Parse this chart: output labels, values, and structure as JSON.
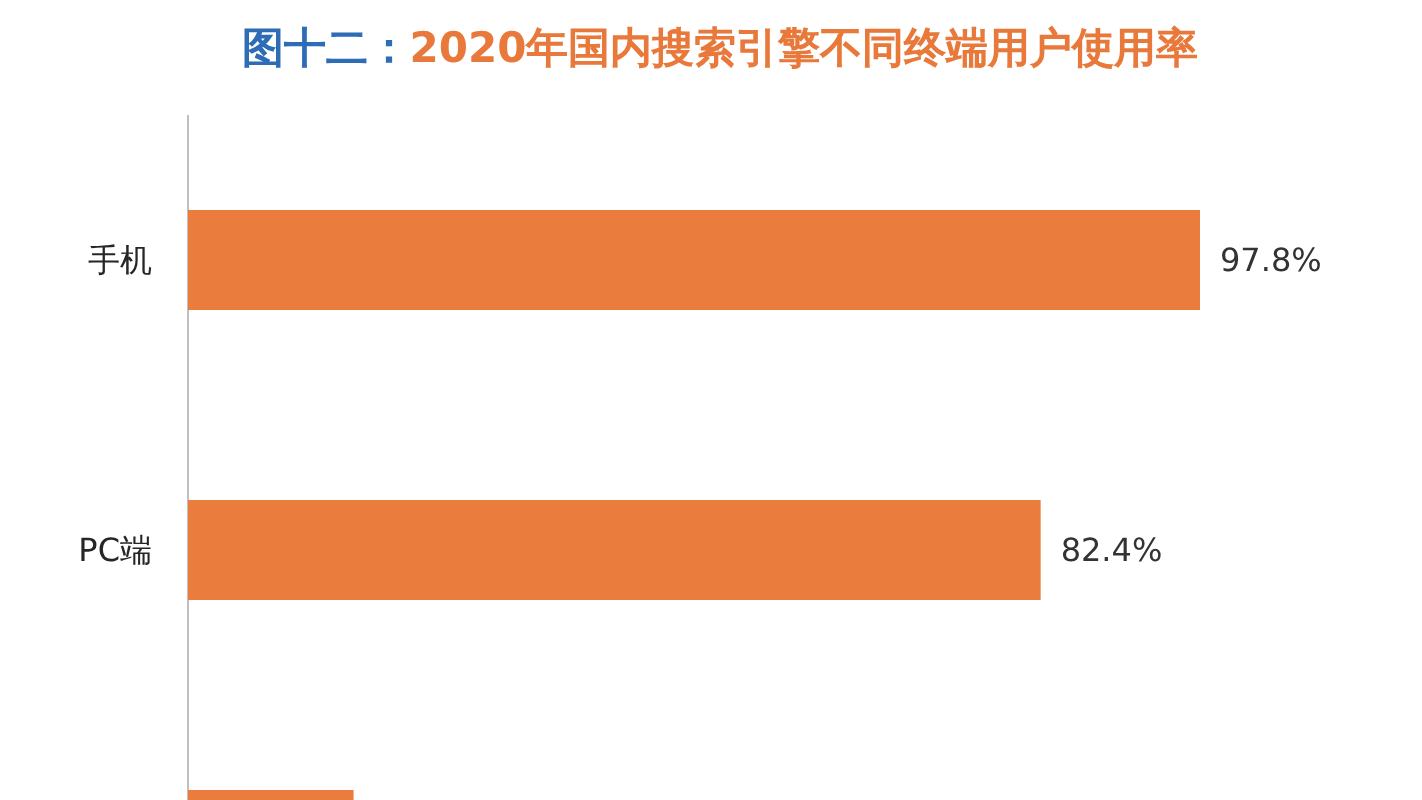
{
  "chart_data": {
    "type": "bar",
    "orientation": "horizontal",
    "title": "图十二：2020年国内搜索引擎不同终端用户使用率",
    "categories": [
      "手机",
      "PC端",
      null
    ],
    "values": [
      97.8,
      82.4,
      16.0
    ],
    "value_labels": [
      "97.8%",
      "82.4%",
      null
    ],
    "color": "#ea7d3d"
  }
}
